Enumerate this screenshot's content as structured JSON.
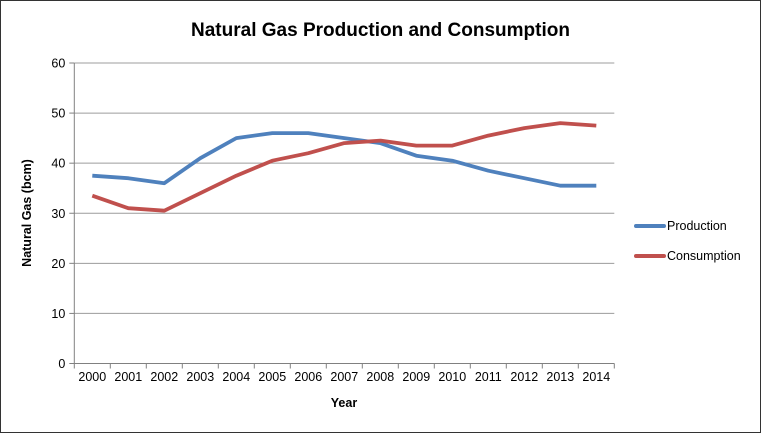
{
  "chart_data": {
    "type": "line",
    "title": "Natural Gas Production and Consumption",
    "xlabel": "Year",
    "ylabel": "Natural Gas (bcm)",
    "categories": [
      "2000",
      "2001",
      "2002",
      "2003",
      "2004",
      "2005",
      "2006",
      "2007",
      "2008",
      "2009",
      "2010",
      "2011",
      "2012",
      "2013",
      "2014"
    ],
    "series": [
      {
        "name": "Production",
        "color": "#4F81BD",
        "values": [
          37.5,
          37,
          36,
          41,
          45,
          46,
          46,
          45,
          44,
          41.5,
          40.5,
          38.5,
          37,
          35.5,
          35.5
        ]
      },
      {
        "name": "Consumption",
        "color": "#C0504D",
        "values": [
          33.5,
          31,
          30.5,
          34,
          37.5,
          40.5,
          42,
          44,
          44.5,
          43.5,
          43.5,
          45.5,
          47,
          48,
          47.5
        ]
      }
    ],
    "ylim": [
      0,
      60
    ],
    "ytick_step": 10,
    "grid": true,
    "legend_position": "right",
    "gridline_color": "#9C9C9C",
    "axis_color": "#808080",
    "text_color": "#000000"
  }
}
